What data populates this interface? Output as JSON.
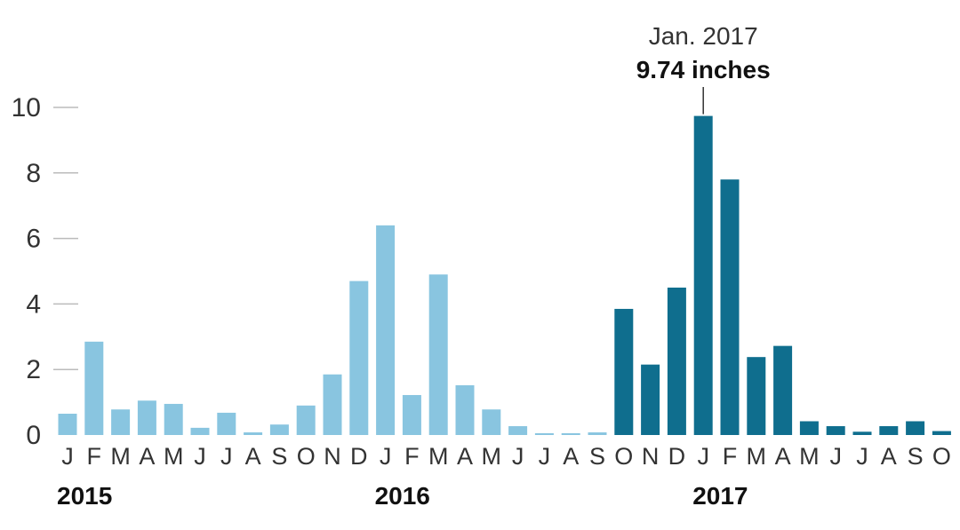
{
  "chart_data": {
    "type": "bar",
    "title": "",
    "xlabel": "",
    "ylabel": "",
    "ylim": [
      0,
      10
    ],
    "yticks": [
      0,
      2,
      4,
      6,
      8,
      10
    ],
    "grid": false,
    "categories": [
      "J",
      "F",
      "M",
      "A",
      "M",
      "J",
      "J",
      "A",
      "S",
      "O",
      "N",
      "D",
      "J",
      "F",
      "M",
      "A",
      "M",
      "J",
      "J",
      "A",
      "S",
      "O",
      "N",
      "D",
      "J",
      "F",
      "M",
      "A",
      "M",
      "J",
      "J",
      "A",
      "S",
      "O"
    ],
    "values": [
      0.65,
      2.85,
      0.78,
      1.05,
      0.95,
      0.22,
      0.68,
      0.08,
      0.32,
      0.9,
      1.85,
      4.7,
      6.4,
      1.22,
      4.9,
      1.52,
      0.78,
      0.27,
      0.05,
      0.05,
      0.08,
      3.85,
      2.15,
      4.5,
      9.74,
      7.8,
      2.38,
      2.72,
      0.42,
      0.27,
      0.1,
      0.27,
      0.42,
      0.12
    ],
    "years": [
      {
        "label": "2015",
        "start_index": 0
      },
      {
        "label": "2016",
        "start_index": 12
      },
      {
        "label": "2017",
        "start_index": 24
      }
    ],
    "highlight_start_index": 21,
    "colors": {
      "base": "#89c5e0",
      "highlight": "#0f6e8e"
    },
    "annotation": {
      "index": 24,
      "line1": "Jan. 2017",
      "line2": "9.74 inches"
    }
  }
}
